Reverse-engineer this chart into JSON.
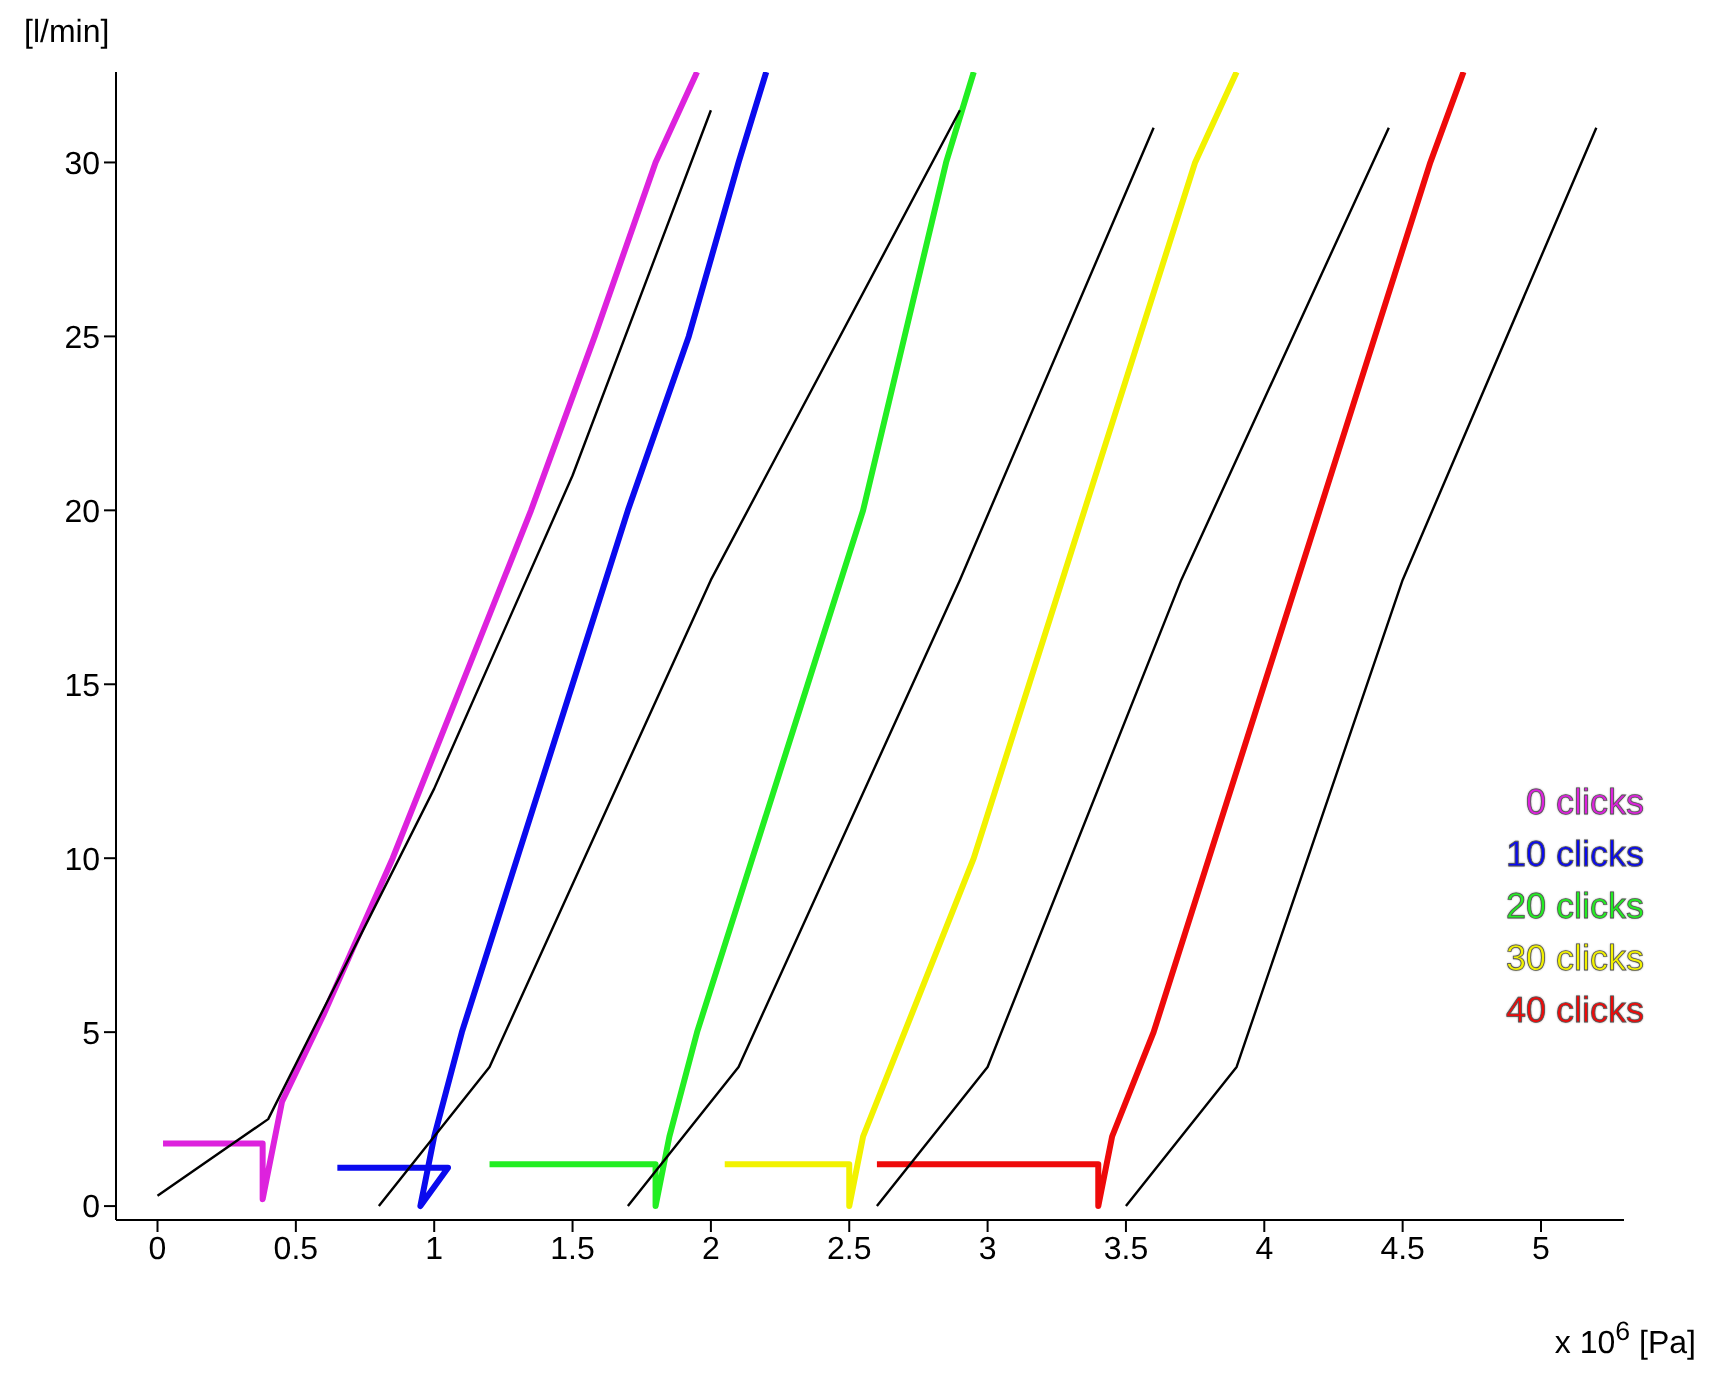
{
  "chart_data": {
    "type": "line",
    "xlabel": "x 10$^{6}$ [Pa]",
    "ylabel": "[l/min]",
    "xlim": [
      -0.15,
      5.3
    ],
    "ylim": [
      -0.4,
      32.6
    ],
    "xticks": [
      0,
      0.5,
      1,
      1.5,
      2,
      2.5,
      3,
      3.5,
      4,
      4.5,
      5
    ],
    "yticks": [
      0,
      5,
      10,
      15,
      20,
      25,
      30
    ],
    "grid": false,
    "legend": "right",
    "marker": "none",
    "line_style": "solid",
    "series": [
      {
        "name": "0 clicks",
        "color": "#dd22dd",
        "x": [
          0.02,
          0.38,
          0.38,
          0.45,
          0.6,
          0.85,
          1.1,
          1.35,
          1.58,
          1.8,
          1.95
        ],
        "values": [
          1.8,
          1.8,
          0.2,
          3,
          5.5,
          10,
          15,
          20,
          25,
          30,
          32.6
        ]
      },
      {
        "name": "10 clicks",
        "color": "#0a0aee",
        "x": [
          0.65,
          1.05,
          0.95,
          1.0,
          1.1,
          1.3,
          1.5,
          1.7,
          1.92,
          2.1,
          2.2
        ],
        "values": [
          1.1,
          1.1,
          0,
          2,
          5,
          10,
          15,
          20,
          25,
          30,
          32.6
        ]
      },
      {
        "name": "20 clicks",
        "color": "#22ee22",
        "x": [
          1.2,
          1.8,
          1.8,
          1.85,
          1.95,
          2.15,
          2.35,
          2.55,
          2.7,
          2.85,
          2.95
        ],
        "values": [
          1.2,
          1.2,
          0,
          2,
          5,
          10,
          15,
          20,
          25,
          30,
          32.6
        ]
      },
      {
        "name": "30 clicks",
        "color": "#f2f200",
        "x": [
          2.05,
          2.5,
          2.5,
          2.55,
          2.7,
          2.95,
          3.15,
          3.35,
          3.55,
          3.75,
          3.9
        ],
        "values": [
          1.2,
          1.2,
          0,
          2,
          5,
          10,
          15,
          20,
          25,
          30,
          32.6
        ]
      },
      {
        "name": "40 clicks",
        "color": "#ee0a0a",
        "x": [
          2.6,
          3.4,
          3.4,
          3.45,
          3.6,
          3.8,
          4.0,
          4.2,
          4.4,
          4.6,
          4.72
        ],
        "values": [
          1.2,
          1.2,
          0,
          2,
          5,
          10,
          15,
          20,
          25,
          30,
          32.6
        ]
      },
      {
        "color": "#000000",
        "x": [
          0,
          0.4,
          1.0,
          1.5,
          2.0
        ],
        "values": [
          0.3,
          2.5,
          12,
          21,
          31.5
        ]
      },
      {
        "color": "#000000",
        "x": [
          0.8,
          1.2,
          2.0,
          2.9
        ],
        "values": [
          0,
          4,
          18,
          31.5
        ]
      },
      {
        "color": "#000000",
        "x": [
          1.7,
          2.1,
          2.9,
          3.6
        ],
        "values": [
          0,
          4,
          18,
          31
        ]
      },
      {
        "color": "#000000",
        "x": [
          2.6,
          3.0,
          3.7,
          4.45
        ],
        "values": [
          0,
          4,
          18,
          31
        ]
      },
      {
        "color": "#000000",
        "x": [
          3.5,
          3.9,
          4.5,
          5.2
        ],
        "values": [
          0,
          4,
          18,
          31
        ]
      }
    ]
  }
}
